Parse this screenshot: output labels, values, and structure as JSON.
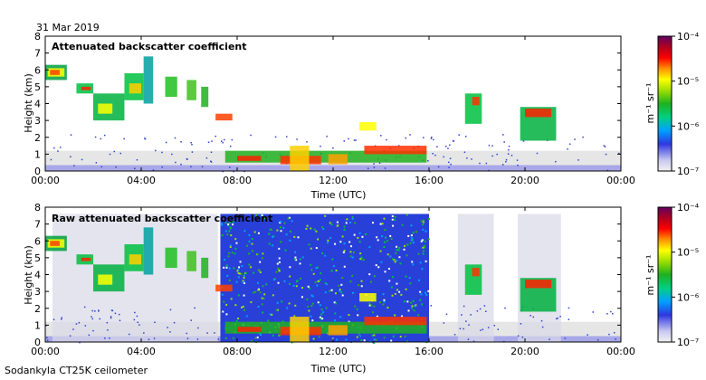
{
  "date_label": "31 Mar 2019",
  "footer_label": "Sodankyla CT25K ceilometer",
  "chart_data": [
    {
      "type": "heatmap",
      "title": "Attenuated backscatter coefficient",
      "xlabel": "Time (UTC)",
      "ylabel": "Height (km)",
      "x_ticks": [
        "00:00",
        "04:00",
        "08:00",
        "12:00",
        "16:00",
        "20:00",
        "00:00"
      ],
      "y_ticks": [
        "0",
        "1",
        "2",
        "3",
        "4",
        "5",
        "6",
        "7",
        "8"
      ],
      "ylim": [
        0,
        8
      ],
      "colorbar": {
        "unit_label": "m⁻¹ sr⁻¹",
        "ticks": [
          "10⁻⁴",
          "10⁻⁵",
          "10⁻⁶",
          "10⁻⁷"
        ],
        "scale": "log",
        "range": [
          "1e-7",
          "1e-4"
        ]
      }
    },
    {
      "type": "heatmap",
      "title": "Raw attenuated backscatter coefficient",
      "xlabel": "Time (UTC)",
      "ylabel": "Height (km)",
      "x_ticks": [
        "00:00",
        "04:00",
        "08:00",
        "12:00",
        "16:00",
        "20:00",
        "00:00"
      ],
      "y_ticks": [
        "0",
        "1",
        "2",
        "3",
        "4",
        "5",
        "6",
        "7",
        "8"
      ],
      "ylim": [
        0,
        8
      ],
      "colorbar": {
        "unit_label": "m⁻¹ sr⁻¹",
        "ticks": [
          "10⁻⁴",
          "10⁻⁵",
          "10⁻⁶",
          "10⁻⁷"
        ],
        "scale": "log",
        "range": [
          "1e-7",
          "1e-4"
        ]
      }
    }
  ]
}
